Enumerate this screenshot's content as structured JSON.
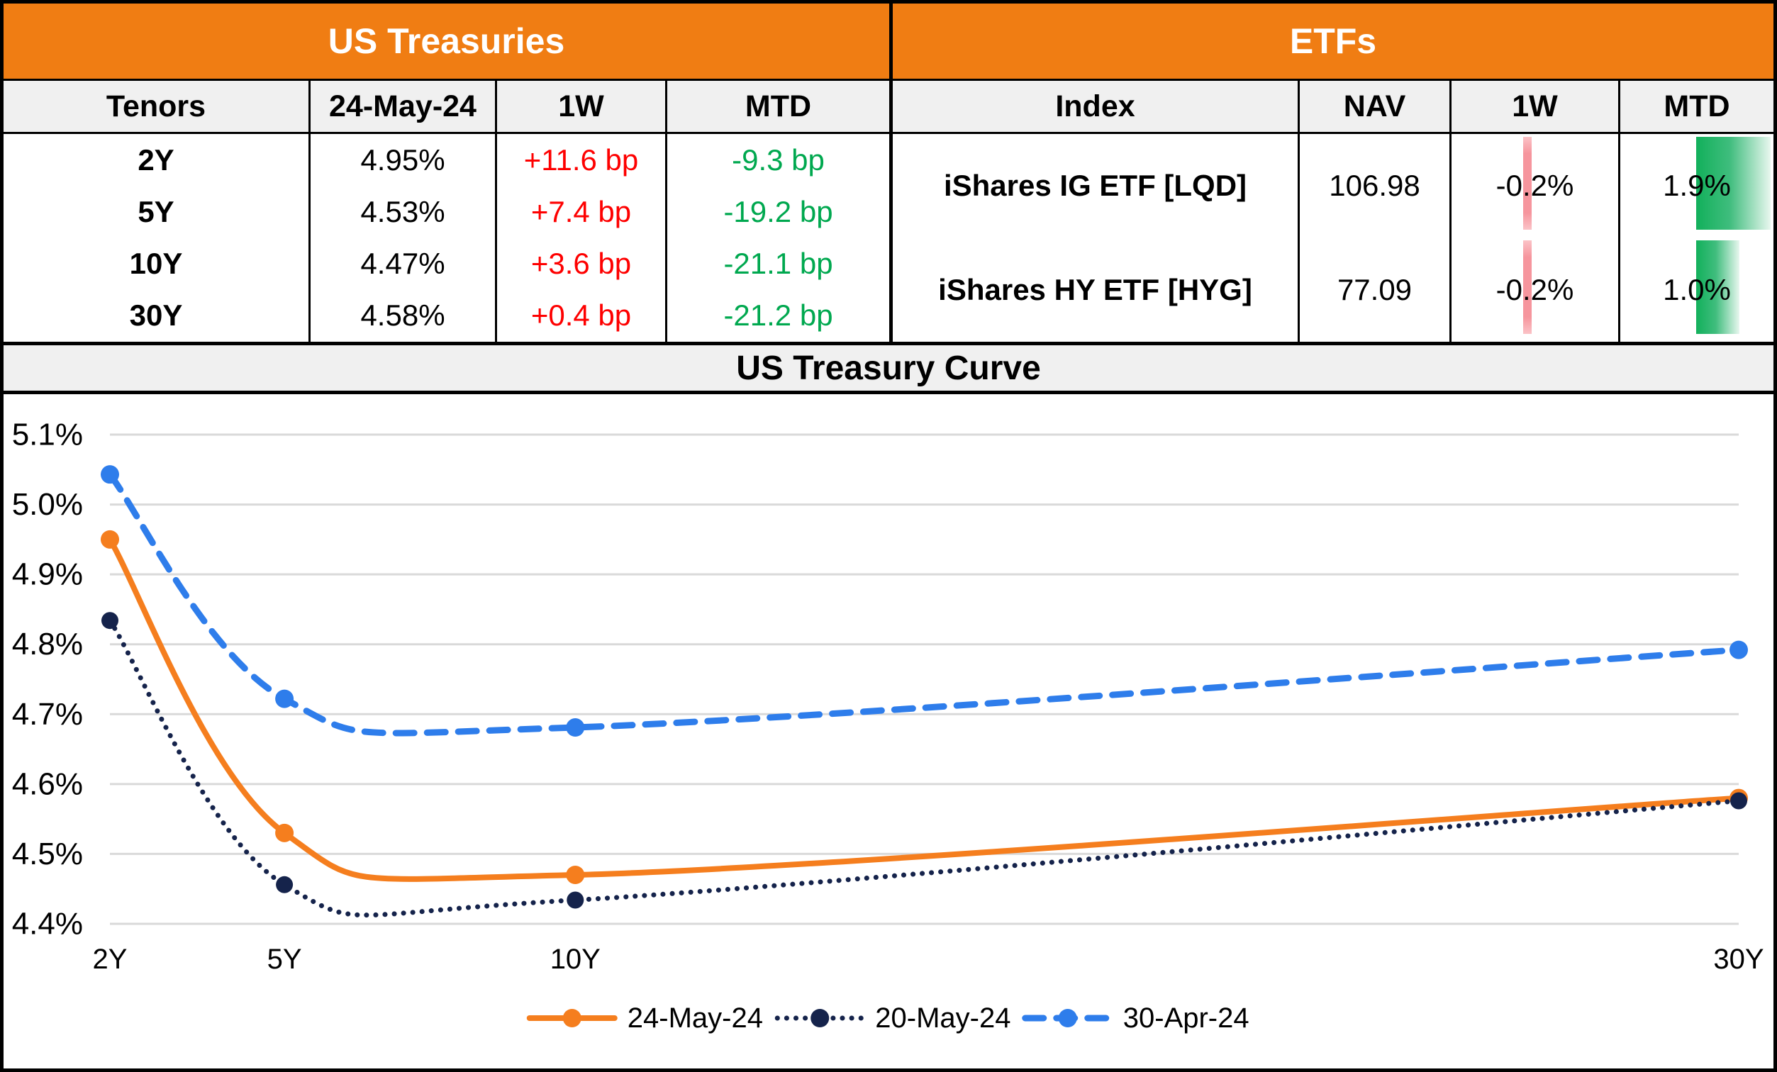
{
  "us_treasuries": {
    "title": "US Treasuries",
    "columns": [
      "Tenors",
      "24-May-24",
      "1W",
      "MTD"
    ],
    "rows": [
      {
        "tenor": "2Y",
        "rate": "4.95%",
        "w1": "+11.6 bp",
        "mtd": "-9.3 bp"
      },
      {
        "tenor": "5Y",
        "rate": "4.53%",
        "w1": "+7.4 bp",
        "mtd": "-19.2 bp"
      },
      {
        "tenor": "10Y",
        "rate": "4.47%",
        "w1": "+3.6 bp",
        "mtd": "-21.1 bp"
      },
      {
        "tenor": "30Y",
        "rate": "4.58%",
        "w1": "+0.4 bp",
        "mtd": "-21.2 bp"
      }
    ]
  },
  "etfs": {
    "title": "ETFs",
    "columns": [
      "Index",
      "NAV",
      "1W",
      "MTD"
    ],
    "rows": [
      {
        "index": "iShares IG ETF [LQD]",
        "nav": "106.98",
        "w1": "-0.2%",
        "mtd": "1.9%",
        "w1_bar": {
          "left_pct": 42.9,
          "width_pct": 5.0
        },
        "mtd_bar": {
          "left_pct": 49.5,
          "width_pct": 48.6
        }
      },
      {
        "index": "iShares HY ETF [HYG]",
        "nav": "77.09",
        "w1": "-0.2%",
        "mtd": "1.0%",
        "w1_bar": {
          "left_pct": 42.9,
          "width_pct": 5.0
        },
        "mtd_bar": {
          "left_pct": 49.5,
          "width_pct": 28.2
        }
      }
    ]
  },
  "colors": {
    "header_orange": "#F07D13",
    "header_gray": "#F0F0F0",
    "negative_red": "#FE0000",
    "positive_green": "#00A84F",
    "databar_green": "#12B05B",
    "databar_pink": "#F6959D",
    "gridline": "#D9D9D9"
  },
  "chart_data": {
    "type": "line",
    "title": "US Treasury Curve",
    "categories": [
      "2Y",
      "5Y",
      "10Y",
      "30Y"
    ],
    "x_numeric": [
      2,
      5,
      10,
      30
    ],
    "ylim": [
      4.4,
      5.1
    ],
    "ytick_step": 0.1,
    "ytick_labels": [
      "5.1%",
      "5.0%",
      "4.9%",
      "4.8%",
      "4.7%",
      "4.6%",
      "4.5%",
      "4.4%"
    ],
    "ylabel": "",
    "xlabel": "",
    "grid": true,
    "legend_position": "bottom",
    "smooth": true,
    "series": [
      {
        "name": "24-May-24",
        "values": [
          4.95,
          4.53,
          4.47,
          4.58
        ],
        "color": "#F57E1E",
        "dash": "solid"
      },
      {
        "name": "20-May-24",
        "values": [
          4.834,
          4.456,
          4.434,
          4.576
        ],
        "color": "#15234B",
        "dash": "dotted"
      },
      {
        "name": "30-Apr-24",
        "values": [
          5.043,
          4.722,
          4.681,
          4.792
        ],
        "color": "#2E7DEB",
        "dash": "dashed"
      }
    ]
  }
}
